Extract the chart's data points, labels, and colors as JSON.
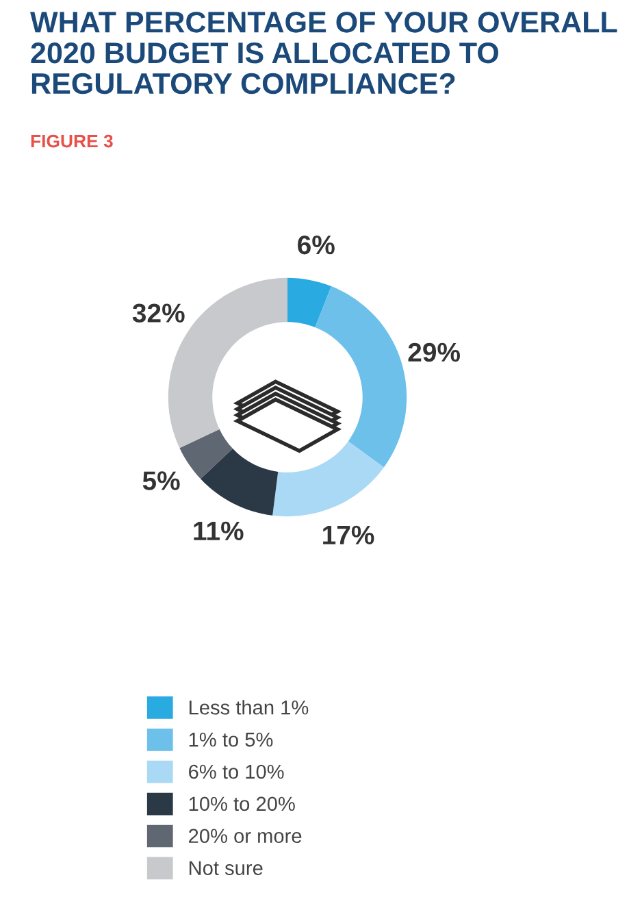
{
  "chart_data": {
    "type": "donut",
    "title": "WHAT PERCENTAGE OF YOUR OVERALL 2020 BUDGET IS ALLOCATED TO REGULATORY COMPLIANCE?",
    "subtitle": "FIGURE 3",
    "categories": [
      "Less than 1%",
      "1% to 5%",
      "6% to 10%",
      "10% to 20%",
      "20% or more",
      "Not sure"
    ],
    "values": [
      6,
      29,
      17,
      11,
      5,
      32
    ],
    "value_labels": [
      "6%",
      "29%",
      "17%",
      "11%",
      "5%",
      "32%"
    ],
    "colors": [
      "#29abe2",
      "#6cc0ea",
      "#a9d9f4",
      "#2b3845",
      "#5f6872",
      "#c7c9cc"
    ],
    "legend": "bottom"
  }
}
